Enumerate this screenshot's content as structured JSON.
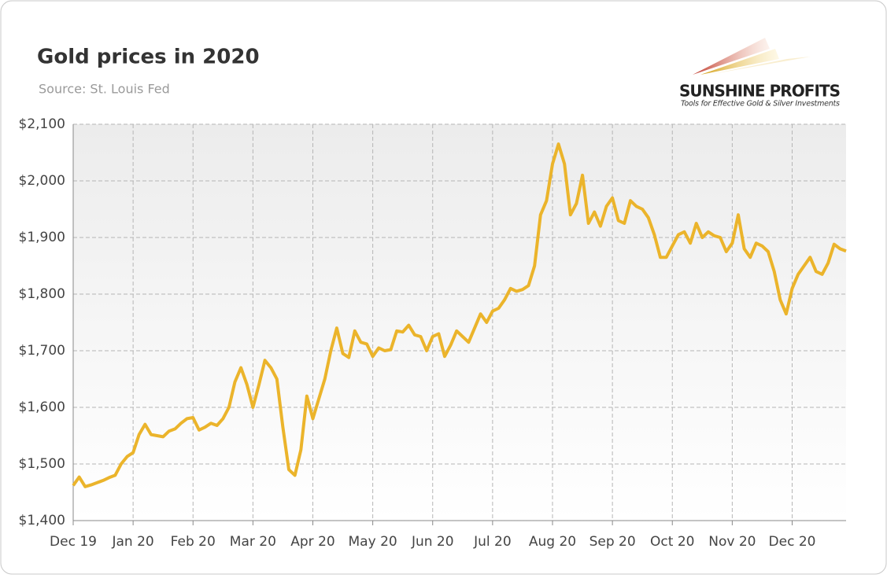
{
  "chart_data": {
    "type": "line",
    "title": "Gold prices in 2020",
    "subtitle": "Source: St. Louis Fed",
    "annotations": [
      "SUNSHINE PROFITS",
      "Tools for Effective Gold & Silver Investments"
    ],
    "categories": [
      "Dec 19",
      null,
      null,
      null,
      null,
      null,
      null,
      null,
      null,
      null,
      "Jan 20",
      null,
      null,
      null,
      null,
      null,
      null,
      null,
      null,
      null,
      "Feb 20",
      null,
      null,
      null,
      null,
      null,
      null,
      null,
      null,
      null,
      "Mar 20",
      null,
      null,
      null,
      null,
      null,
      null,
      null,
      null,
      null,
      "Apr 20",
      null,
      null,
      null,
      null,
      null,
      null,
      null,
      null,
      null,
      "May 20",
      null,
      null,
      null,
      null,
      null,
      null,
      null,
      null,
      null,
      "Jun 20",
      null,
      null,
      null,
      null,
      null,
      null,
      null,
      null,
      null,
      "Jul 20",
      null,
      null,
      null,
      null,
      null,
      null,
      null,
      null,
      null,
      "Aug 20",
      null,
      null,
      null,
      null,
      null,
      null,
      null,
      null,
      null,
      "Sep 20",
      null,
      null,
      null,
      null,
      null,
      null,
      null,
      null,
      null,
      "Oct 20",
      null,
      null,
      null,
      null,
      null,
      null,
      null,
      null,
      null,
      "Nov 20",
      null,
      null,
      null,
      null,
      null,
      null,
      null,
      null,
      null,
      "Dec 20",
      null,
      null,
      null,
      null,
      null,
      null,
      null,
      null,
      null
    ],
    "values": [
      1462,
      1477,
      1460,
      1463,
      1467,
      1471,
      1476,
      1480,
      1500,
      1513,
      1520,
      1552,
      1570,
      1552,
      1550,
      1548,
      1558,
      1562,
      1572,
      1580,
      1582,
      1560,
      1565,
      1572,
      1568,
      1580,
      1600,
      1645,
      1670,
      1640,
      1600,
      1640,
      1683,
      1670,
      1650,
      1565,
      1490,
      1480,
      1525,
      1620,
      1580,
      1615,
      1650,
      1700,
      1740,
      1695,
      1688,
      1735,
      1715,
      1712,
      1690,
      1705,
      1700,
      1702,
      1735,
      1733,
      1745,
      1728,
      1725,
      1700,
      1725,
      1730,
      1690,
      1710,
      1735,
      1725,
      1715,
      1740,
      1765,
      1750,
      1770,
      1775,
      1790,
      1810,
      1805,
      1808,
      1815,
      1850,
      1940,
      1965,
      2030,
      2065,
      2030,
      1940,
      1960,
      2010,
      1925,
      1945,
      1920,
      1955,
      1970,
      1930,
      1925,
      1965,
      1955,
      1950,
      1935,
      1905,
      1865,
      1865,
      1885,
      1905,
      1910,
      1890,
      1925,
      1900,
      1910,
      1903,
      1900,
      1875,
      1890,
      1940,
      1880,
      1865,
      1890,
      1885,
      1875,
      1840,
      1790,
      1765,
      1810,
      1835,
      1850,
      1865,
      1840,
      1835,
      1855,
      1888,
      1880,
      1876
    ],
    "color": "#ebb42b",
    "ylim": [
      1400,
      2100
    ],
    "yticks": [
      {
        "value": 1400,
        "label": "$1,400"
      },
      {
        "value": 1500,
        "label": "$1,500"
      },
      {
        "value": 1600,
        "label": "$1,600"
      },
      {
        "value": 1700,
        "label": "$1,700"
      },
      {
        "value": 1800,
        "label": "$1,800"
      },
      {
        "value": 1900,
        "label": "$1,900"
      },
      {
        "value": 2000,
        "label": "$2,000"
      },
      {
        "value": 2100,
        "label": "$2,100"
      }
    ],
    "grid": true
  }
}
